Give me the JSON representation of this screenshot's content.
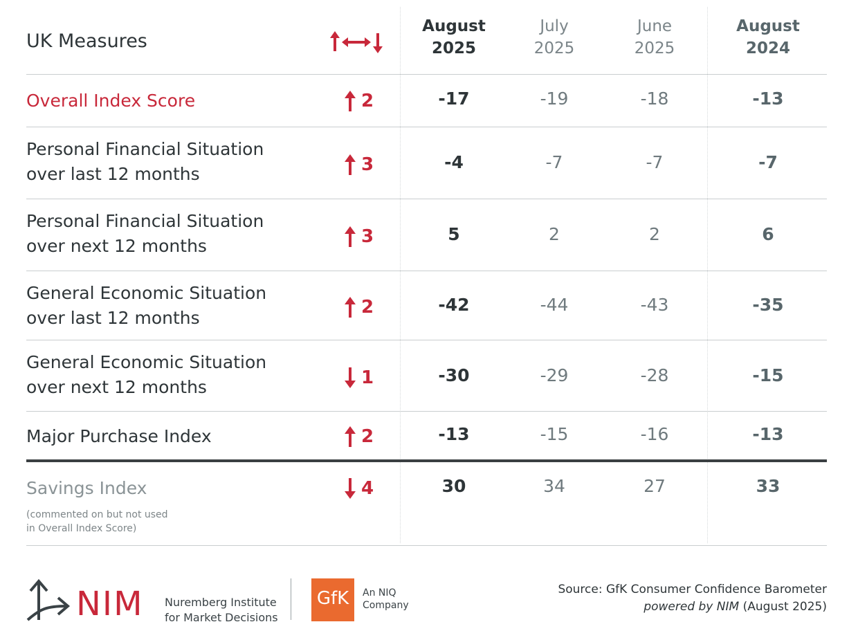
{
  "header": {
    "title": "UK Measures",
    "columns": [
      {
        "line1": "August",
        "line2": "2025"
      },
      {
        "line1": "July",
        "line2": "2025"
      },
      {
        "line1": "June",
        "line2": "2025"
      },
      {
        "line1": "August",
        "line2": "2024"
      }
    ]
  },
  "rows": [
    {
      "line1": "Overall Index Score",
      "line2": "",
      "direction": "up",
      "change": "2",
      "values": [
        "-17",
        "-19",
        "-18",
        "-13"
      ]
    },
    {
      "line1": "Personal Financial Situation",
      "line2": "over last 12 months",
      "direction": "up",
      "change": "3",
      "values": [
        "-4",
        "-7",
        "-7",
        "-7"
      ]
    },
    {
      "line1": "Personal Financial Situation",
      "line2": "over next 12 months",
      "direction": "up",
      "change": "3",
      "values": [
        "5",
        "2",
        "2",
        "6"
      ]
    },
    {
      "line1": "General Economic Situation",
      "line2": "over last 12 months",
      "direction": "up",
      "change": "2",
      "values": [
        "-42",
        "-44",
        "-43",
        "-35"
      ]
    },
    {
      "line1": "General Economic Situation",
      "line2": "over next 12 months",
      "direction": "down",
      "change": "1",
      "values": [
        "-30",
        "-29",
        "-28",
        "-15"
      ]
    },
    {
      "line1": "Major Purchase Index",
      "line2": "",
      "direction": "up",
      "change": "2",
      "values": [
        "-13",
        "-15",
        "-16",
        "-13"
      ]
    }
  ],
  "savings": {
    "label": "Savings Index",
    "note1": "(commented on but not used",
    "note2": "in Overall Index Score)",
    "direction": "down",
    "change": "4",
    "values": [
      "30",
      "34",
      "27",
      "33"
    ]
  },
  "footer": {
    "nim_logo": "NIM",
    "nim_line1": "Nuremberg Institute",
    "nim_line2": "for Market Decisions",
    "gfk_logo": "GfK",
    "niq_line1": "An NIQ",
    "niq_line2": "Company",
    "source_line1": "Source: GfK Consumer Confidence Barometer",
    "source_italic": "powered by NIM",
    "source_tail": " (August 2025)"
  },
  "colors": {
    "accent": "#c8283a",
    "gfk": "#ea6a2f",
    "text": "#2e3538",
    "muted": "#6f7a7e"
  }
}
